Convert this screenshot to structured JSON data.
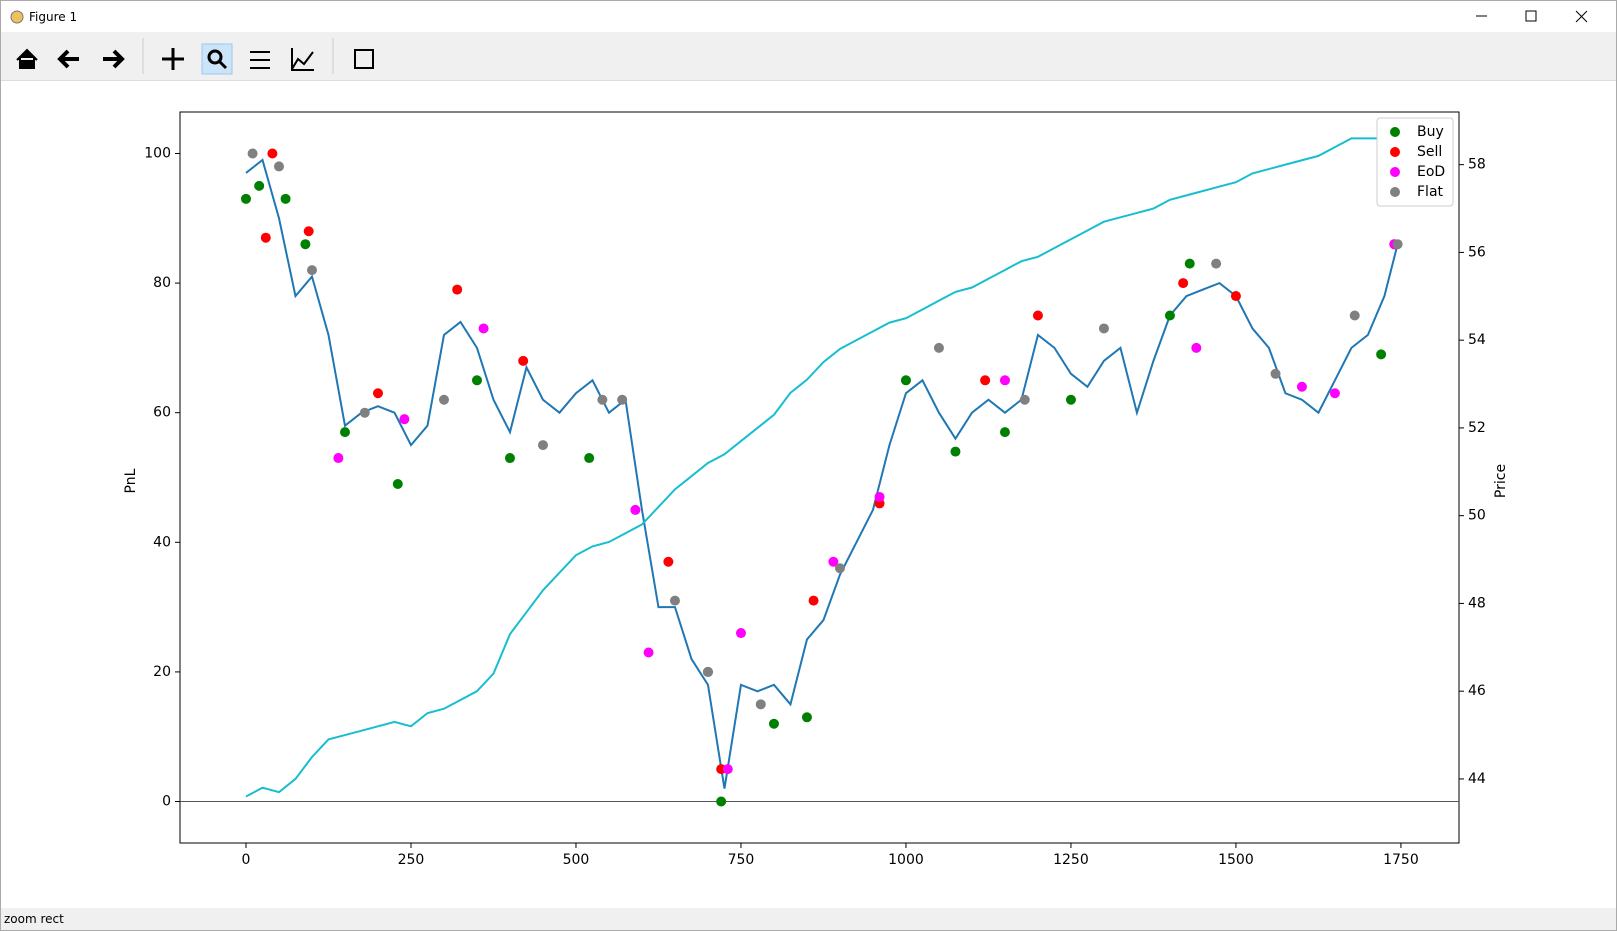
{
  "window": {
    "title": "Figure 1"
  },
  "status": "zoom rect",
  "chart_data": {
    "type": "line",
    "ylabel": "PnL",
    "y2label": "Price",
    "xlim": [
      -100,
      1838
    ],
    "ylim": [
      -6.4,
      106.4
    ],
    "y2lim": [
      42.54,
      59.2
    ],
    "xticks": [
      0,
      250,
      500,
      750,
      1000,
      1250,
      1500,
      1750
    ],
    "yticks": [
      0,
      20,
      40,
      60,
      80,
      100
    ],
    "y2ticks": [
      44,
      46,
      48,
      50,
      52,
      54,
      56,
      58
    ],
    "hline": 0,
    "legend": "upper right",
    "lines": [
      {
        "color": "#1f77b4",
        "x": [
          0,
          25,
          50,
          75,
          100,
          125,
          150,
          175,
          200,
          225,
          250,
          275,
          300,
          325,
          350,
          375,
          400,
          425,
          450,
          475,
          500,
          525,
          550,
          575,
          600,
          625,
          650,
          675,
          700,
          725,
          750,
          775,
          800,
          825,
          850,
          875,
          900,
          925,
          950,
          975,
          1000,
          1025,
          1050,
          1075,
          1100,
          1125,
          1150,
          1175,
          1200,
          1225,
          1250,
          1275,
          1300,
          1325,
          1350,
          1375,
          1400,
          1425,
          1450,
          1475,
          1500,
          1525,
          1550,
          1575,
          1600,
          1625,
          1650,
          1675,
          1700,
          1725,
          1745
        ],
        "y": [
          97,
          99,
          90,
          78,
          81,
          72,
          58,
          60,
          61,
          60,
          55,
          58,
          72,
          74,
          70,
          62,
          57,
          67,
          62,
          60,
          63,
          65,
          60,
          62,
          45,
          30,
          30,
          22,
          18,
          2,
          18,
          17,
          18,
          15,
          25,
          28,
          35,
          40,
          45,
          55,
          63,
          65,
          60,
          56,
          60,
          62,
          60,
          62,
          72,
          70,
          66,
          64,
          68,
          70,
          60,
          68,
          75,
          78,
          79,
          80,
          78,
          73,
          70,
          63,
          62,
          60,
          65,
          70,
          72,
          78,
          86
        ]
      },
      {
        "color": "#17becf",
        "axis": "y2",
        "x": [
          0,
          25,
          50,
          75,
          100,
          125,
          150,
          175,
          200,
          225,
          250,
          275,
          300,
          325,
          350,
          375,
          400,
          425,
          450,
          475,
          500,
          525,
          550,
          575,
          600,
          625,
          650,
          675,
          700,
          725,
          750,
          775,
          800,
          825,
          850,
          875,
          900,
          925,
          950,
          975,
          1000,
          1025,
          1050,
          1075,
          1100,
          1125,
          1150,
          1175,
          1200,
          1225,
          1250,
          1275,
          1300,
          1325,
          1350,
          1375,
          1400,
          1425,
          1450,
          1475,
          1500,
          1525,
          1550,
          1575,
          1600,
          1625,
          1650,
          1675,
          1700,
          1725
        ],
        "y": [
          43.6,
          43.8,
          43.7,
          44.0,
          44.5,
          44.9,
          45.0,
          45.1,
          45.2,
          45.3,
          45.2,
          45.5,
          45.6,
          45.8,
          46.0,
          46.4,
          47.3,
          47.8,
          48.3,
          48.7,
          49.1,
          49.3,
          49.4,
          49.6,
          49.8,
          50.2,
          50.6,
          50.9,
          51.2,
          51.4,
          51.7,
          52.0,
          52.3,
          52.8,
          53.1,
          53.5,
          53.8,
          54.0,
          54.2,
          54.4,
          54.5,
          54.7,
          54.9,
          55.1,
          55.2,
          55.4,
          55.6,
          55.8,
          55.9,
          56.1,
          56.3,
          56.5,
          56.7,
          56.8,
          56.9,
          57.0,
          57.2,
          57.3,
          57.4,
          57.5,
          57.6,
          57.8,
          57.9,
          58.0,
          58.1,
          58.2,
          58.4,
          58.6,
          58.6,
          58.6
        ]
      }
    ],
    "series": [
      {
        "name": "Buy",
        "color": "#008000",
        "x": [
          0,
          20,
          60,
          90,
          150,
          230,
          350,
          400,
          520,
          700,
          720,
          800,
          850,
          1000,
          1075,
          1150,
          1250,
          1400,
          1430,
          1720
        ],
        "y": [
          93,
          95,
          93,
          86,
          57,
          49,
          65,
          53,
          53,
          20,
          0,
          12,
          13,
          65,
          54,
          57,
          62,
          75,
          83,
          69
        ]
      },
      {
        "name": "Sell",
        "color": "#ff0000",
        "x": [
          30,
          40,
          95,
          200,
          320,
          420,
          640,
          720,
          860,
          960,
          1120,
          1200,
          1420,
          1500,
          1740
        ],
        "y": [
          87,
          100,
          88,
          63,
          79,
          68,
          37,
          5,
          31,
          46,
          65,
          75,
          80,
          78,
          86
        ]
      },
      {
        "name": "EoD",
        "color": "#ff00ff",
        "x": [
          140,
          240,
          360,
          590,
          610,
          730,
          750,
          890,
          960,
          1150,
          1440,
          1600,
          1650,
          1740
        ],
        "y": [
          53,
          59,
          73,
          45,
          23,
          5,
          26,
          37,
          47,
          65,
          70,
          64,
          63,
          86
        ]
      },
      {
        "name": "Flat",
        "color": "#808080",
        "x": [
          10,
          50,
          100,
          180,
          300,
          450,
          540,
          570,
          650,
          700,
          780,
          900,
          1050,
          1180,
          1300,
          1470,
          1560,
          1680,
          1745
        ],
        "y": [
          100,
          98,
          82,
          60,
          62,
          55,
          62,
          62,
          31,
          20,
          15,
          36,
          70,
          62,
          73,
          83,
          66,
          75,
          86
        ]
      }
    ]
  }
}
